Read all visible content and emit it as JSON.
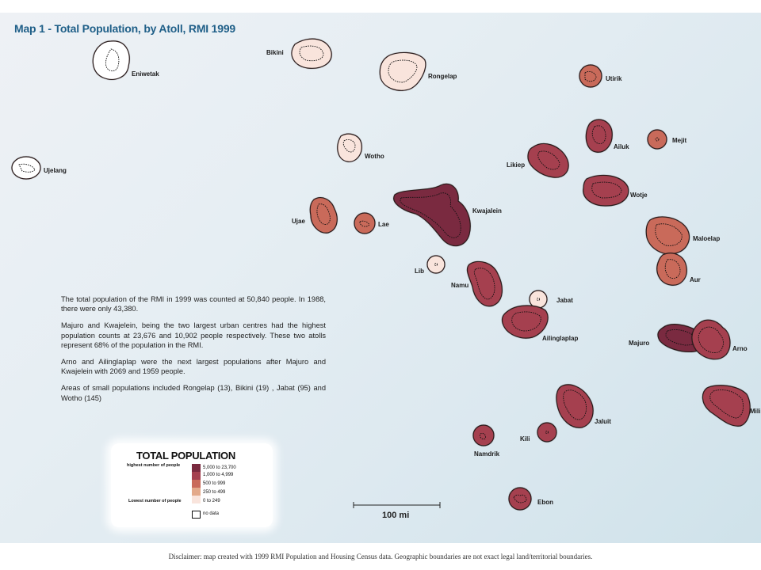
{
  "title": "Map 1 - Total Population, by Atoll, RMI 1999",
  "atolls": [
    {
      "name": "Eniwetak",
      "class": "nodata"
    },
    {
      "name": "Bikini",
      "class": "c0"
    },
    {
      "name": "Rongelap",
      "class": "c0"
    },
    {
      "name": "Utirik",
      "class": "c2"
    },
    {
      "name": "Ujelang",
      "class": "nodata"
    },
    {
      "name": "Wotho",
      "class": "c0"
    },
    {
      "name": "Ailuk",
      "class": "c3"
    },
    {
      "name": "Mejit",
      "class": "c2"
    },
    {
      "name": "Likiep",
      "class": "c3"
    },
    {
      "name": "Wotje",
      "class": "c3"
    },
    {
      "name": "Kwajalein",
      "class": "c4"
    },
    {
      "name": "Ujae",
      "class": "c2"
    },
    {
      "name": "Lae",
      "class": "c2"
    },
    {
      "name": "Maloelap",
      "class": "c2"
    },
    {
      "name": "Lib",
      "class": "c0"
    },
    {
      "name": "Namu",
      "class": "c3"
    },
    {
      "name": "Aur",
      "class": "c2"
    },
    {
      "name": "Jabat",
      "class": "c0"
    },
    {
      "name": "Ailinglaplap",
      "class": "c3"
    },
    {
      "name": "Majuro",
      "class": "c4"
    },
    {
      "name": "Arno",
      "class": "c3"
    },
    {
      "name": "Mili",
      "class": "c3"
    },
    {
      "name": "Jaluit",
      "class": "c3"
    },
    {
      "name": "Kili",
      "class": "c3"
    },
    {
      "name": "Namdrik",
      "class": "c3"
    },
    {
      "name": "Ebon",
      "class": "c3"
    }
  ],
  "description": [
    "The total population of the RMI in 1999 was counted at 50,840 people. In 1988, there were only 43,380.",
    "Majuro and Kwajelein, being the two largest urban centres had the highest population counts at 23,676 and 10,902 people respectively. These two atolls represent 68% of the population in the RMI.",
    "Arno and Ailinglaplap were the next largest populations after Majuro and Kwajelein with 2069 and 1959 people.",
    "Areas of small populations included Rongelap (13), Bikini (19) , Jabat (95) and Wotho (145)"
  ],
  "legend": {
    "title": "TOTAL POPULATION",
    "high_label": "highest number of people",
    "low_label": "Lowest number of people",
    "classes": [
      {
        "label": "5,000 to 23,700",
        "color": "#7a2a3f"
      },
      {
        "label": "1,000 to 4,999",
        "color": "#a5404f"
      },
      {
        "label": "500 to 999",
        "color": "#c96a5a"
      },
      {
        "label": "250 to 499",
        "color": "#e3a98a"
      },
      {
        "label": "0 to 249",
        "color": "#f9e4dc"
      }
    ],
    "nodata_label": "no data",
    "nodata_color": "#ffffff"
  },
  "scale": {
    "label": "100 mi"
  },
  "disclaimer": "Disclaimer:  map created with 1999 RMI Population and Housing Census data. Geographic boundaries are not exact legal land/territorial boundaries."
}
